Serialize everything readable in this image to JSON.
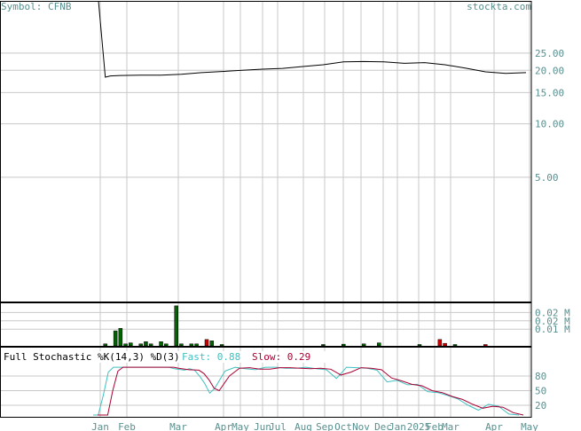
{
  "header": {
    "symbol_label": "Symbol: CFNB",
    "site": "stockta.com"
  },
  "colors": {
    "axis_text": "#5a8f8f",
    "grid": "#c8c8c8",
    "price_line": "#000000",
    "volume_up": "#006400",
    "volume_down": "#cc0000",
    "fast_line": "#40c0c0",
    "slow_line": "#aa0033",
    "frame": "#000000"
  },
  "chart_data": [
    {
      "type": "line",
      "panel": "price",
      "title": "",
      "yscale": "log",
      "ylim": [
        0,
        30
      ],
      "y_ticks": [
        "25.00",
        "20.00",
        "15.00",
        "10.00",
        "5.00"
      ],
      "y_tick_values": [
        25,
        20,
        15,
        10,
        5
      ],
      "x_tick_labels": [
        "Jan",
        "Feb",
        "Mar",
        "Apr",
        "May",
        "Jun",
        "Jul",
        "Aug",
        "Sep",
        "Oct",
        "Nov",
        "Dec",
        "Jan",
        "2025",
        "Feb",
        "Mar",
        "Apr",
        "May"
      ],
      "series": [
        {
          "x": [
            0,
            1,
            2,
            4,
            8,
            12,
            16,
            20,
            24,
            28,
            32,
            36,
            40,
            44,
            48,
            52,
            56,
            60,
            64,
            68,
            72,
            76,
            80,
            84
          ],
          "values": [
            150,
            18.3,
            18.6,
            18.7,
            18.8,
            18.8,
            19.0,
            19.4,
            19.7,
            20.0,
            20.3,
            20.5,
            21.0,
            21.5,
            22.3,
            22.4,
            22.3,
            21.9,
            22.1,
            21.5,
            20.6,
            19.6,
            19.2,
            19.4
          ]
        }
      ]
    },
    {
      "type": "bar",
      "panel": "volume",
      "y_ticks": [
        "0.02 M",
        "0.02 M",
        "0.01 M"
      ],
      "bars": [
        {
          "x": 1,
          "v": 0.0012,
          "dir": "up"
        },
        {
          "x": 3,
          "v": 0.009,
          "dir": "up"
        },
        {
          "x": 4,
          "v": 0.0105,
          "dir": "up"
        },
        {
          "x": 5,
          "v": 0.0012,
          "dir": "up"
        },
        {
          "x": 6,
          "v": 0.0018,
          "dir": "up"
        },
        {
          "x": 8,
          "v": 0.0012,
          "dir": "up"
        },
        {
          "x": 9,
          "v": 0.0025,
          "dir": "up"
        },
        {
          "x": 10,
          "v": 0.0012,
          "dir": "up"
        },
        {
          "x": 12,
          "v": 0.0025,
          "dir": "up"
        },
        {
          "x": 13,
          "v": 0.0012,
          "dir": "up"
        },
        {
          "x": 15,
          "v": 0.024,
          "dir": "up"
        },
        {
          "x": 16,
          "v": 0.0012,
          "dir": "up"
        },
        {
          "x": 18,
          "v": 0.0012,
          "dir": "up"
        },
        {
          "x": 19,
          "v": 0.0012,
          "dir": "up"
        },
        {
          "x": 21,
          "v": 0.0038,
          "dir": "down"
        },
        {
          "x": 22,
          "v": 0.003,
          "dir": "up"
        },
        {
          "x": 24,
          "v": 0.0008,
          "dir": "up"
        },
        {
          "x": 44,
          "v": 0.0008,
          "dir": "up"
        },
        {
          "x": 48,
          "v": 0.001,
          "dir": "up"
        },
        {
          "x": 52,
          "v": 0.0012,
          "dir": "up"
        },
        {
          "x": 55,
          "v": 0.0018,
          "dir": "up"
        },
        {
          "x": 63,
          "v": 0.0008,
          "dir": "up"
        },
        {
          "x": 67,
          "v": 0.0038,
          "dir": "down"
        },
        {
          "x": 68,
          "v": 0.0015,
          "dir": "down"
        },
        {
          "x": 70,
          "v": 0.0008,
          "dir": "up"
        },
        {
          "x": 76,
          "v": 0.0008,
          "dir": "down"
        }
      ]
    },
    {
      "type": "line",
      "panel": "stochastic",
      "title": "Full Stochastic %K(14,3) %D(3)",
      "fast_label": "Fast: 0.88",
      "slow_label": "Slow: 0.29",
      "ylim": [
        0,
        100
      ],
      "y_ticks": [
        "80",
        "50",
        "20"
      ],
      "y_tick_values": [
        80,
        50,
        20
      ],
      "series": [
        {
          "name": "Fast",
          "x": [
            0,
            1,
            2,
            3,
            4,
            8,
            10,
            12,
            14,
            15,
            16,
            18,
            19,
            20,
            21,
            22,
            23,
            24,
            26,
            28,
            30,
            32,
            34,
            36,
            38,
            40,
            42,
            44,
            46,
            48,
            50,
            52,
            54,
            56,
            58,
            60,
            62,
            64,
            66,
            68,
            70,
            72,
            74,
            76,
            78,
            80,
            82,
            84
          ],
          "values": [
            0,
            0,
            40,
            88,
            98,
            98,
            98,
            98,
            98,
            98,
            95,
            92,
            95,
            92,
            80,
            65,
            45,
            55,
            90,
            98,
            95,
            93,
            98,
            98,
            96,
            96,
            98,
            95,
            93,
            75,
            98,
            97,
            96,
            92,
            68,
            71,
            62,
            63,
            48,
            46,
            40,
            33,
            20,
            10,
            22,
            18,
            2,
            0
          ]
        },
        {
          "name": "Slow",
          "x": [
            0,
            2,
            3,
            4,
            5,
            8,
            12,
            15,
            16,
            18,
            20,
            21,
            22,
            23,
            24,
            26,
            28,
            30,
            32,
            34,
            36,
            38,
            40,
            42,
            44,
            46,
            48,
            50,
            52,
            54,
            56,
            58,
            60,
            62,
            64,
            66,
            68,
            70,
            72,
            74,
            76,
            78,
            80,
            82,
            84
          ],
          "values": [
            0,
            0,
            50,
            90,
            98,
            98,
            98,
            98,
            96,
            93,
            92,
            85,
            72,
            55,
            50,
            80,
            96,
            97,
            94,
            94,
            97,
            97,
            96,
            95,
            96,
            94,
            82,
            88,
            97,
            96,
            93,
            76,
            70,
            63,
            60,
            50,
            46,
            38,
            32,
            22,
            14,
            18,
            16,
            5,
            0
          ]
        }
      ]
    }
  ]
}
